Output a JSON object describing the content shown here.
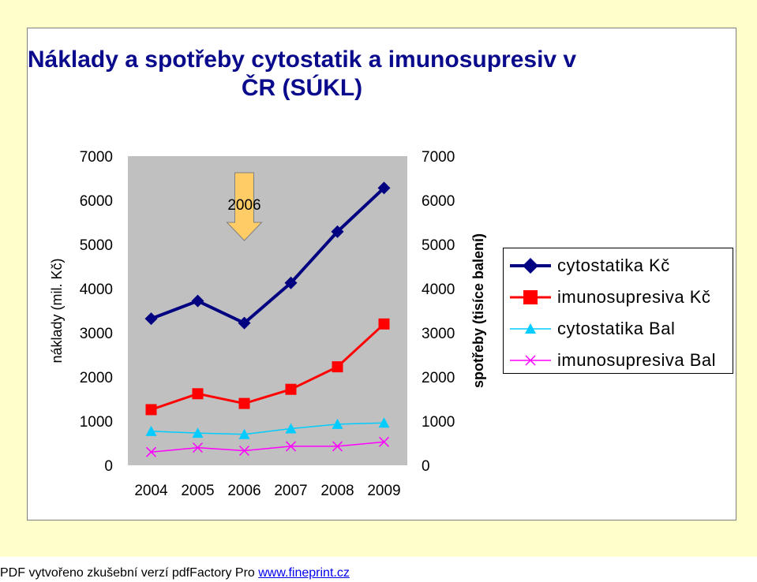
{
  "colors": {
    "slide_bg": "#ffffcc",
    "plot_bg": "#c0c0c0",
    "arrow_fill": "#ffcc66",
    "series": [
      "#000080",
      "#ff0000",
      "#00ccff",
      "#ff00ff"
    ]
  },
  "chart_data": {
    "type": "line",
    "title": "Náklady a spotřeby cytostatik a imunosupresiv v ČR (SÚKL)",
    "xlabel": "",
    "ylabel": "náklady (mil. Kč)",
    "y2label": "spotřeby (tisíce balení)",
    "categories": [
      "2004",
      "2005",
      "2006",
      "2007",
      "2008",
      "2009"
    ],
    "ylim": [
      0,
      7000
    ],
    "y_ticks": [
      "0",
      "1000",
      "2000",
      "3000",
      "4000",
      "5000",
      "6000",
      "7000"
    ],
    "y2lim": [
      0,
      7000
    ],
    "y2_ticks": [
      "0",
      "1000",
      "2000",
      "3000",
      "4000",
      "5000",
      "6000",
      "7000"
    ],
    "grid": false,
    "legend_position": "right",
    "annotation": {
      "text": "2006",
      "category": "2006",
      "icon": "down-arrow-icon"
    },
    "series": [
      {
        "name": "cytostatika Kč",
        "marker": "diamond",
        "values": [
          3320,
          3720,
          3220,
          4130,
          5290,
          6280
        ]
      },
      {
        "name": "imunosupresiva Kč",
        "marker": "square",
        "values": [
          1260,
          1620,
          1400,
          1720,
          2230,
          3200
        ]
      },
      {
        "name": "cytostatika Bal",
        "marker": "triangle",
        "values": [
          770,
          730,
          700,
          830,
          930,
          960
        ]
      },
      {
        "name": "imunosupresiva Bal",
        "marker": "x",
        "values": [
          300,
          400,
          330,
          430,
          430,
          530
        ]
      }
    ]
  },
  "footer": {
    "text": "PDF vytvořeno zkušební verzí pdfFactory Pro ",
    "link": "www.fineprint.cz"
  }
}
